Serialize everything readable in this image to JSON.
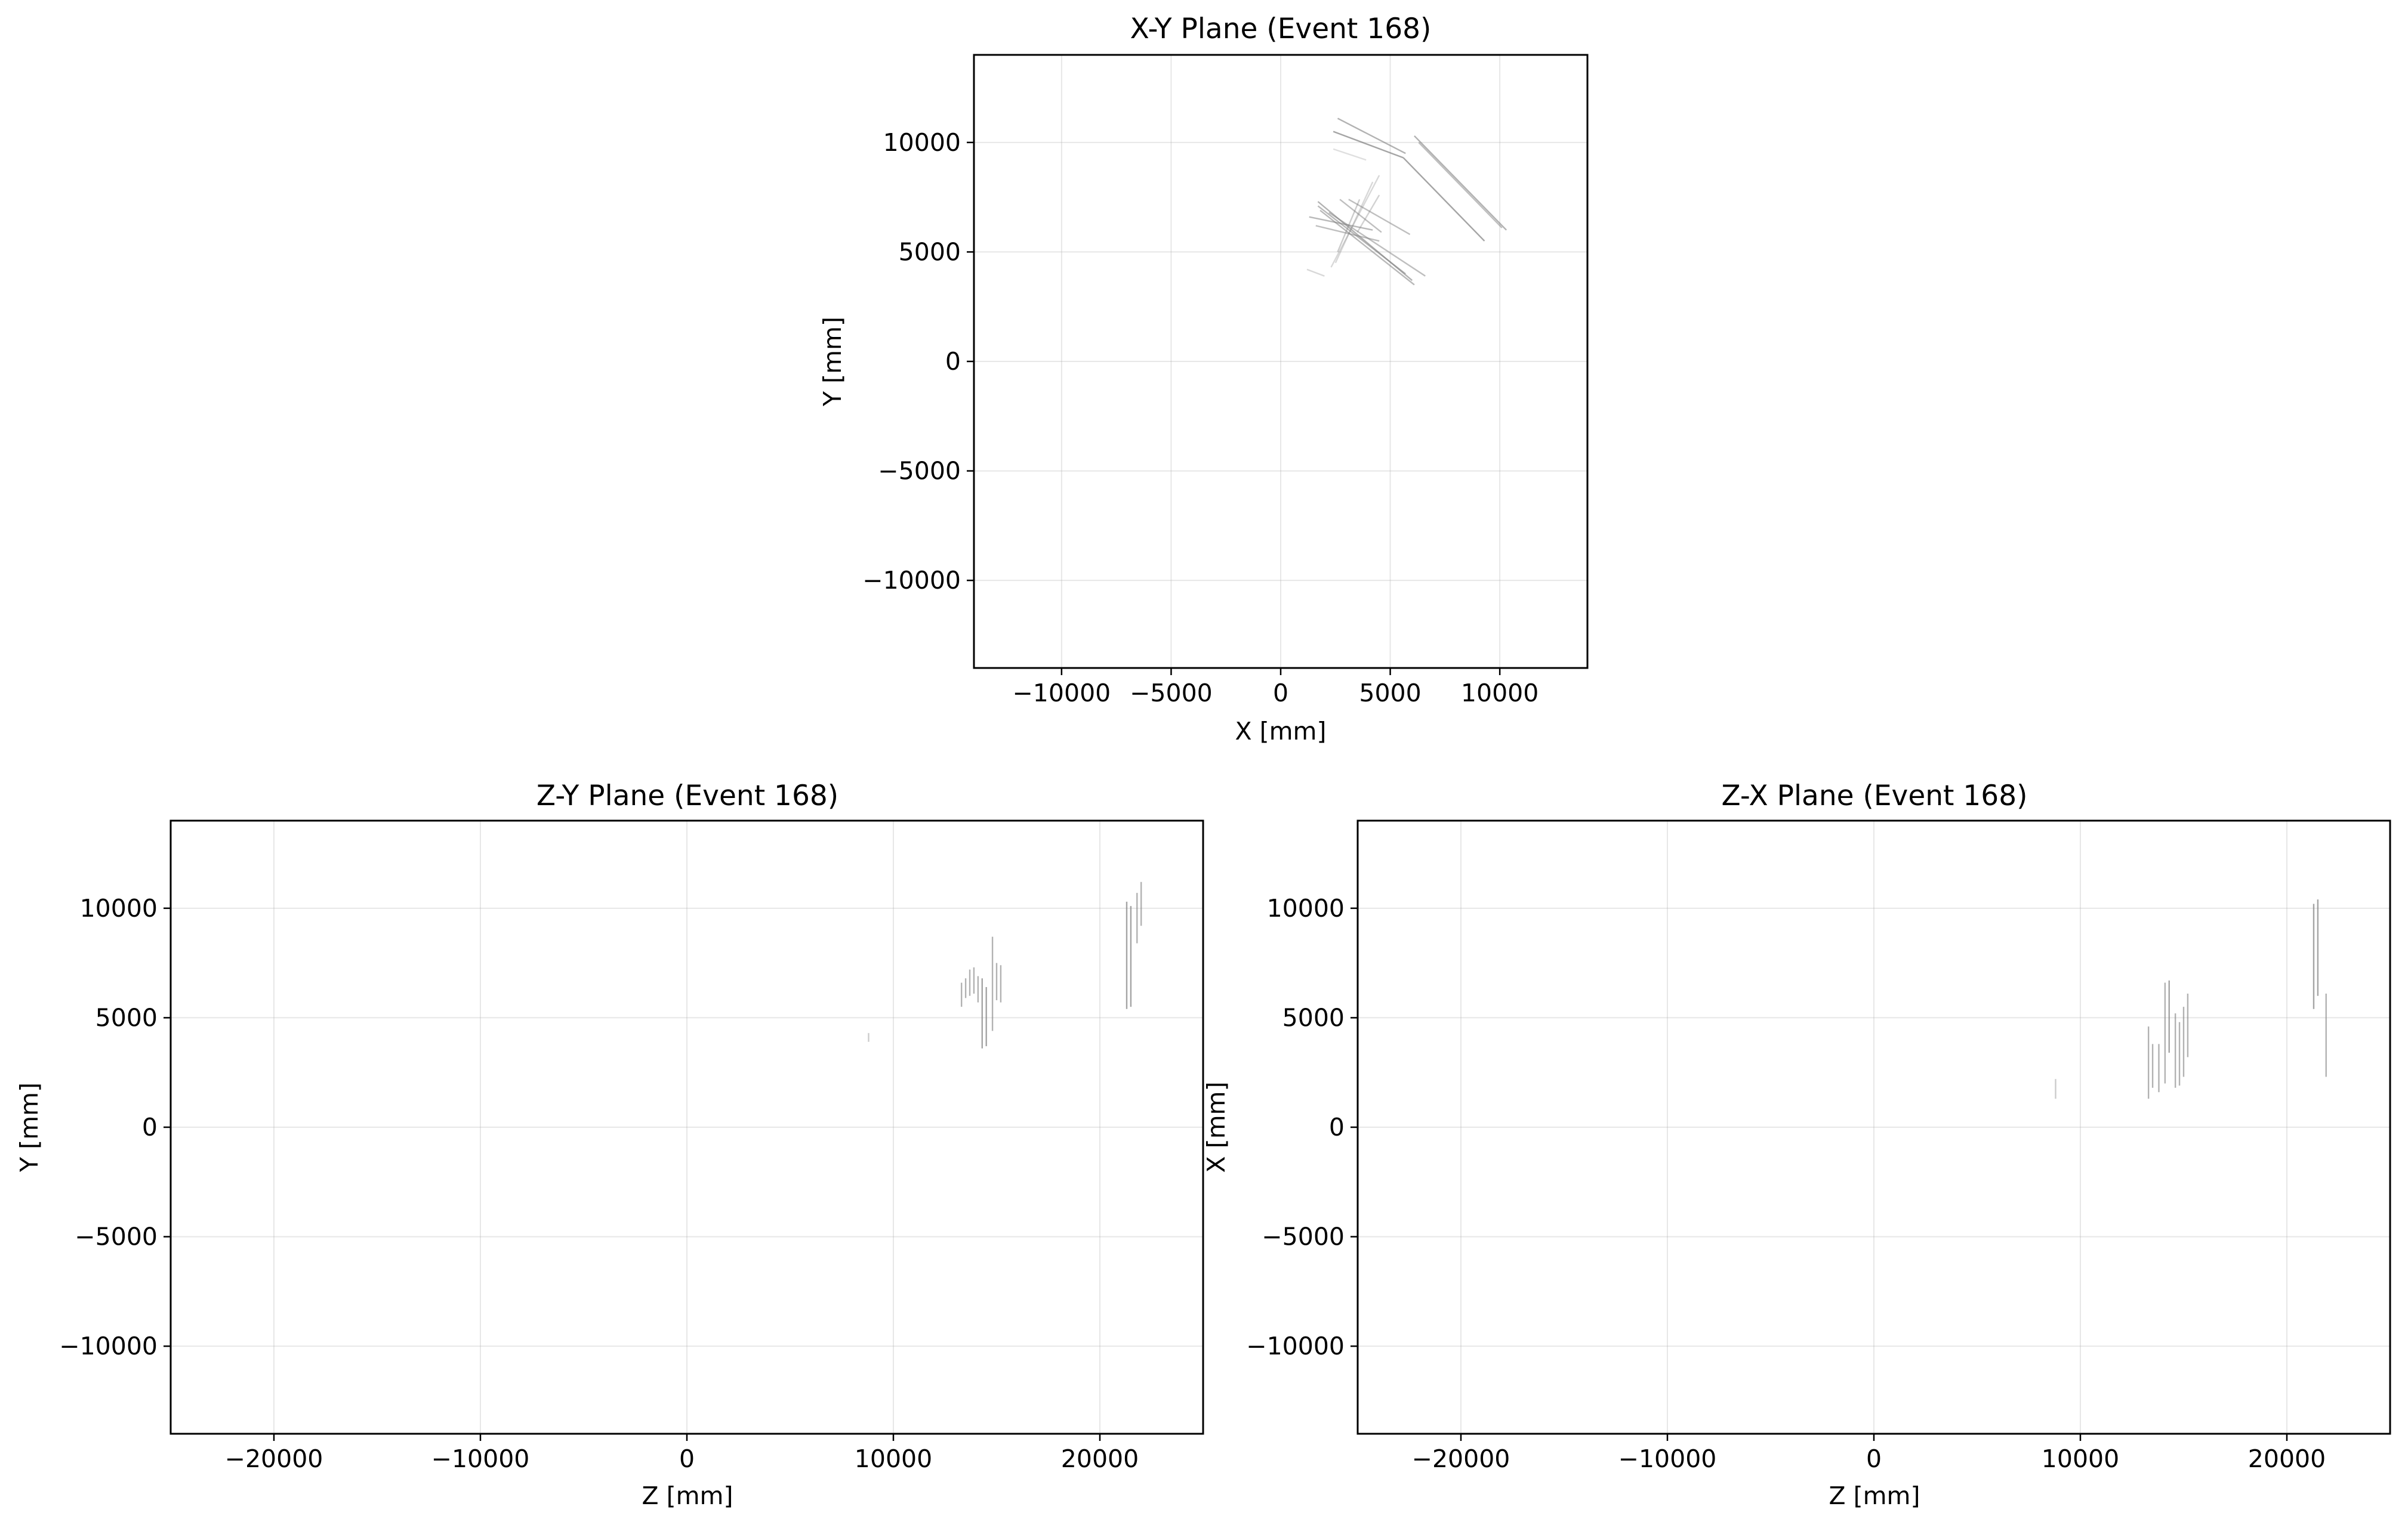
{
  "figure": {
    "background": "#ffffff",
    "track_color": "#7f7f7f",
    "grid_color": "#b0b0b0"
  },
  "chart_data": [
    {
      "type": "line",
      "id": "xy",
      "title": "X-Y Plane (Event 168)",
      "xlabel": "X [mm]",
      "ylabel": "Y [mm]",
      "xlim": [
        -14000,
        14000
      ],
      "ylim": [
        -14000,
        14000
      ],
      "xticks": [
        -10000,
        -5000,
        0,
        5000,
        10000
      ],
      "yticks": [
        -10000,
        -5000,
        0,
        5000,
        10000
      ],
      "xtick_labels": [
        "−10000",
        "−5000",
        "0",
        "5000",
        "10000"
      ],
      "ytick_labels": [
        "−10000",
        "−5000",
        "0",
        "5000",
        "10000"
      ],
      "grid": true,
      "segments": [
        {
          "x1": 2600,
          "y1": 11100,
          "x2": 5700,
          "y2": 9500,
          "alpha": 0.6
        },
        {
          "x1": 2400,
          "y1": 10500,
          "x2": 5600,
          "y2": 9300,
          "alpha": 0.7
        },
        {
          "x1": 5600,
          "y1": 9300,
          "x2": 9300,
          "y2": 5500,
          "alpha": 0.7
        },
        {
          "x1": 6100,
          "y1": 10300,
          "x2": 10300,
          "y2": 6000,
          "alpha": 0.6
        },
        {
          "x1": 6300,
          "y1": 10000,
          "x2": 10100,
          "y2": 6100,
          "alpha": 0.5
        },
        {
          "x1": 2400,
          "y1": 9700,
          "x2": 3900,
          "y2": 9200,
          "alpha": 0.25
        },
        {
          "x1": 1700,
          "y1": 7300,
          "x2": 6000,
          "y2": 3700,
          "alpha": 0.6
        },
        {
          "x1": 1700,
          "y1": 7100,
          "x2": 5700,
          "y2": 4000,
          "alpha": 0.55
        },
        {
          "x1": 1800,
          "y1": 6900,
          "x2": 6100,
          "y2": 3500,
          "alpha": 0.55
        },
        {
          "x1": 2200,
          "y1": 6800,
          "x2": 6600,
          "y2": 3900,
          "alpha": 0.5
        },
        {
          "x1": 1300,
          "y1": 6600,
          "x2": 4200,
          "y2": 6000,
          "alpha": 0.55
        },
        {
          "x1": 1600,
          "y1": 6200,
          "x2": 4500,
          "y2": 5500,
          "alpha": 0.5
        },
        {
          "x1": 2700,
          "y1": 7400,
          "x2": 4600,
          "y2": 5900,
          "alpha": 0.5
        },
        {
          "x1": 3100,
          "y1": 7400,
          "x2": 5900,
          "y2": 5800,
          "alpha": 0.5
        },
        {
          "x1": 2600,
          "y1": 5000,
          "x2": 3600,
          "y2": 7400,
          "alpha": 0.4
        },
        {
          "x1": 2300,
          "y1": 4300,
          "x2": 4500,
          "y2": 8500,
          "alpha": 0.3
        },
        {
          "x1": 2500,
          "y1": 4500,
          "x2": 4200,
          "y2": 8200,
          "alpha": 0.3
        },
        {
          "x1": 3500,
          "y1": 5900,
          "x2": 4500,
          "y2": 7600,
          "alpha": 0.35
        },
        {
          "x1": 1200,
          "y1": 4200,
          "x2": 2000,
          "y2": 3900,
          "alpha": 0.3
        }
      ]
    },
    {
      "type": "line",
      "id": "zy",
      "title": "Z-Y Plane (Event 168)",
      "xlabel": "Z [mm]",
      "ylabel": "Y [mm]",
      "xlim": [
        -25000,
        25000
      ],
      "ylim": [
        -14000,
        14000
      ],
      "xticks": [
        -20000,
        -10000,
        0,
        10000,
        20000
      ],
      "yticks": [
        -10000,
        -5000,
        0,
        5000,
        10000
      ],
      "xtick_labels": [
        "−20000",
        "−10000",
        "0",
        "10000",
        "20000"
      ],
      "ytick_labels": [
        "−10000",
        "−5000",
        "0",
        "5000",
        "10000"
      ],
      "grid": true,
      "segments": [
        {
          "x1": 8800,
          "y1": 3900,
          "x2": 8800,
          "y2": 4300,
          "alpha": 0.4
        },
        {
          "x1": 13300,
          "y1": 5500,
          "x2": 13300,
          "y2": 6600,
          "alpha": 0.6
        },
        {
          "x1": 13500,
          "y1": 5900,
          "x2": 13500,
          "y2": 6800,
          "alpha": 0.6
        },
        {
          "x1": 13700,
          "y1": 6000,
          "x2": 13700,
          "y2": 7200,
          "alpha": 0.6
        },
        {
          "x1": 13900,
          "y1": 6100,
          "x2": 13900,
          "y2": 7300,
          "alpha": 0.6
        },
        {
          "x1": 14100,
          "y1": 5700,
          "x2": 14100,
          "y2": 6900,
          "alpha": 0.6
        },
        {
          "x1": 14300,
          "y1": 3600,
          "x2": 14300,
          "y2": 6800,
          "alpha": 0.7
        },
        {
          "x1": 14500,
          "y1": 3700,
          "x2": 14500,
          "y2": 6400,
          "alpha": 0.7
        },
        {
          "x1": 14800,
          "y1": 4400,
          "x2": 14800,
          "y2": 8700,
          "alpha": 0.6
        },
        {
          "x1": 15000,
          "y1": 5800,
          "x2": 15000,
          "y2": 7500,
          "alpha": 0.6
        },
        {
          "x1": 15200,
          "y1": 5700,
          "x2": 15200,
          "y2": 7400,
          "alpha": 0.6
        },
        {
          "x1": 21300,
          "y1": 5400,
          "x2": 21300,
          "y2": 10300,
          "alpha": 0.7
        },
        {
          "x1": 21500,
          "y1": 5500,
          "x2": 21500,
          "y2": 10100,
          "alpha": 0.7
        },
        {
          "x1": 21800,
          "y1": 8400,
          "x2": 21800,
          "y2": 10700,
          "alpha": 0.6
        },
        {
          "x1": 22000,
          "y1": 9200,
          "x2": 22000,
          "y2": 11200,
          "alpha": 0.6
        }
      ]
    },
    {
      "type": "line",
      "id": "zx",
      "title": "Z-X Plane (Event 168)",
      "xlabel": "Z [mm]",
      "ylabel": "X [mm]",
      "xlim": [
        -25000,
        25000
      ],
      "ylim": [
        -14000,
        14000
      ],
      "xticks": [
        -20000,
        -10000,
        0,
        10000,
        20000
      ],
      "yticks": [
        -10000,
        -5000,
        0,
        5000,
        10000
      ],
      "xtick_labels": [
        "−20000",
        "−10000",
        "0",
        "10000",
        "20000"
      ],
      "ytick_labels": [
        "−10000",
        "−5000",
        "0",
        "5000",
        "10000"
      ],
      "grid": true,
      "segments": [
        {
          "x1": 8800,
          "y1": 1300,
          "x2": 8800,
          "y2": 2200,
          "alpha": 0.4
        },
        {
          "x1": 13300,
          "y1": 1300,
          "x2": 13300,
          "y2": 4600,
          "alpha": 0.6
        },
        {
          "x1": 13500,
          "y1": 1800,
          "x2": 13500,
          "y2": 3800,
          "alpha": 0.6
        },
        {
          "x1": 13800,
          "y1": 1600,
          "x2": 13800,
          "y2": 3800,
          "alpha": 0.6
        },
        {
          "x1": 14100,
          "y1": 2000,
          "x2": 14100,
          "y2": 6600,
          "alpha": 0.6
        },
        {
          "x1": 14300,
          "y1": 3400,
          "x2": 14300,
          "y2": 6700,
          "alpha": 0.7
        },
        {
          "x1": 14600,
          "y1": 1800,
          "x2": 14600,
          "y2": 5200,
          "alpha": 0.6
        },
        {
          "x1": 14800,
          "y1": 1900,
          "x2": 14800,
          "y2": 4800,
          "alpha": 0.6
        },
        {
          "x1": 15000,
          "y1": 2300,
          "x2": 15000,
          "y2": 5500,
          "alpha": 0.6
        },
        {
          "x1": 15200,
          "y1": 3200,
          "x2": 15200,
          "y2": 6100,
          "alpha": 0.6
        },
        {
          "x1": 21300,
          "y1": 5400,
          "x2": 21300,
          "y2": 10200,
          "alpha": 0.7
        },
        {
          "x1": 21500,
          "y1": 6000,
          "x2": 21500,
          "y2": 10400,
          "alpha": 0.7
        },
        {
          "x1": 21900,
          "y1": 2300,
          "x2": 21900,
          "y2": 6100,
          "alpha": 0.6
        }
      ]
    }
  ]
}
